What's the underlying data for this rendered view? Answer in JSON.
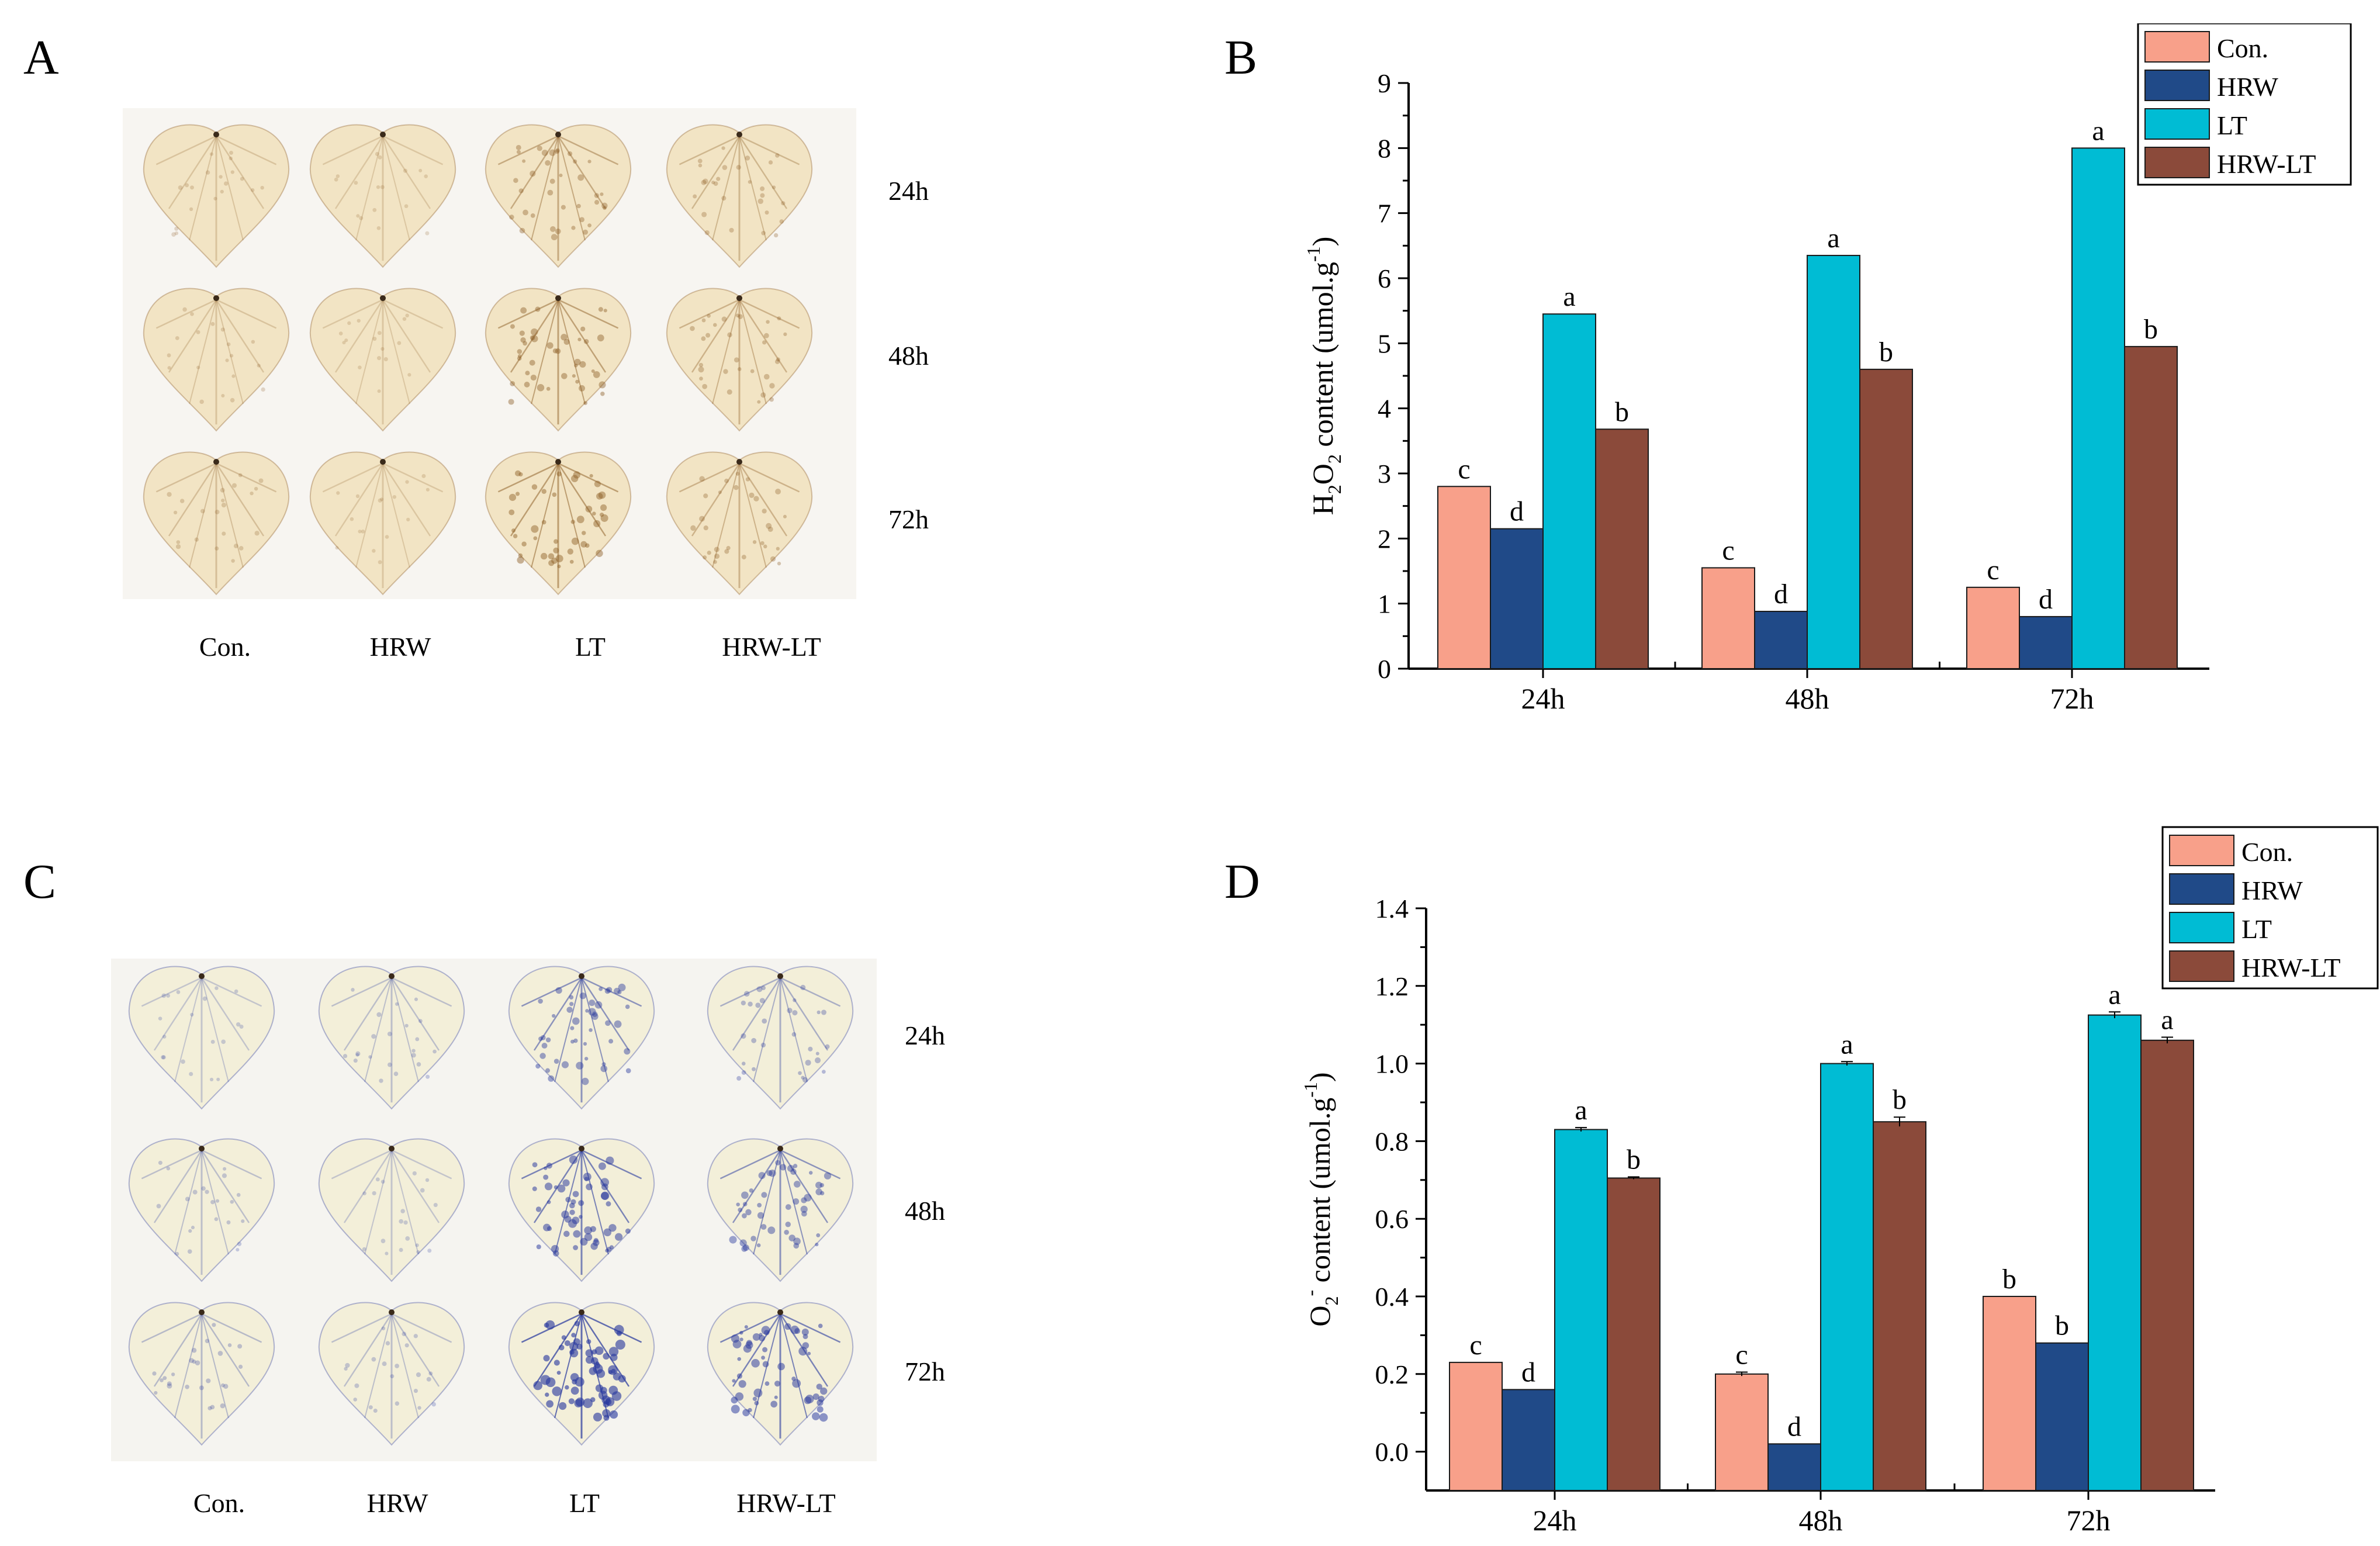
{
  "panels": {
    "a": {
      "letter": "A",
      "times": [
        "24h",
        "48h",
        "72h"
      ],
      "columns": [
        "Con.",
        "HRW",
        "LT",
        "HRW-LT"
      ]
    },
    "b": {
      "letter": "B"
    },
    "c": {
      "letter": "C",
      "times": [
        "24h",
        "48h",
        "72h"
      ],
      "columns": [
        "Con.",
        "HRW",
        "LT",
        "HRW-LT"
      ]
    },
    "d": {
      "letter": "D"
    }
  },
  "leaf_stain": {
    "dab_color": "#8a5a22",
    "nbt_color": "#2a3a9e",
    "dab_intensity": [
      [
        0.15,
        0.1,
        0.45,
        0.3
      ],
      [
        0.15,
        0.1,
        0.55,
        0.35
      ],
      [
        0.2,
        0.1,
        0.6,
        0.35
      ]
    ],
    "nbt_intensity": [
      [
        0.15,
        0.2,
        0.6,
        0.35
      ],
      [
        0.2,
        0.15,
        0.75,
        0.6
      ],
      [
        0.25,
        0.2,
        0.95,
        0.75
      ]
    ]
  },
  "colors": {
    "Con.": "#f8a08a",
    "HRW": "#204a88",
    "LT": "#00bcd4",
    "HRW-LT": "#8b4a3a"
  },
  "chart_data": [
    {
      "type": "bar",
      "title": "",
      "categories": [
        "24h",
        "48h",
        "72h"
      ],
      "series": [
        {
          "name": "Con.",
          "values": [
            2.8,
            1.55,
            1.25
          ],
          "letters": [
            "c",
            "c",
            "c"
          ]
        },
        {
          "name": "HRW",
          "values": [
            2.15,
            0.88,
            0.8
          ],
          "letters": [
            "d",
            "d",
            "d"
          ]
        },
        {
          "name": "LT",
          "values": [
            5.45,
            6.35,
            8.0
          ],
          "letters": [
            "a",
            "a",
            "a"
          ]
        },
        {
          "name": "HRW-LT",
          "values": [
            3.68,
            4.6,
            4.95
          ],
          "letters": [
            "b",
            "b",
            "b"
          ]
        }
      ],
      "xlabel": "",
      "ylabel": {
        "base": "H",
        "sub1": "2",
        "mid": "O",
        "sub2": "2",
        "rest": " content (umol.g",
        "sup": "-1",
        "end": ")"
      },
      "ylim": [
        0,
        9
      ],
      "yticks": [
        "0",
        "1",
        "2",
        "3",
        "4",
        "5",
        "6",
        "7",
        "8",
        "9"
      ],
      "legend": "top-right"
    },
    {
      "type": "bar",
      "title": "",
      "categories": [
        "24h",
        "48h",
        "72h"
      ],
      "series": [
        {
          "name": "Con.",
          "values": [
            0.23,
            0.2,
            0.4
          ],
          "errors": [
            0.0,
            0.005,
            0.0
          ],
          "letters": [
            "c",
            "c",
            "b"
          ]
        },
        {
          "name": "HRW",
          "values": [
            0.16,
            0.02,
            0.28
          ],
          "errors": [
            0,
            0,
            0
          ],
          "letters": [
            "d",
            "d",
            "b"
          ]
        },
        {
          "name": "LT",
          "values": [
            0.83,
            1.0,
            1.125
          ],
          "errors": [
            0.005,
            0.005,
            0.008
          ],
          "letters": [
            "a",
            "a",
            "a"
          ]
        },
        {
          "name": "HRW-LT",
          "values": [
            0.705,
            0.85,
            1.06
          ],
          "errors": [
            0.003,
            0.012,
            0.008
          ],
          "letters": [
            "b",
            "b",
            "a"
          ]
        }
      ],
      "xlabel": "",
      "ylabel": {
        "base": "O",
        "sub1": "2",
        "sup0": "-",
        "rest": " content (umol.g",
        "sup": "-1",
        "end": ")"
      },
      "ylim": [
        -0.1,
        1.4
      ],
      "yticks": [
        "0.0",
        "0.2",
        "0.4",
        "0.6",
        "0.8",
        "1.0",
        "1.2",
        "1.4"
      ],
      "legend": "top-right"
    }
  ]
}
